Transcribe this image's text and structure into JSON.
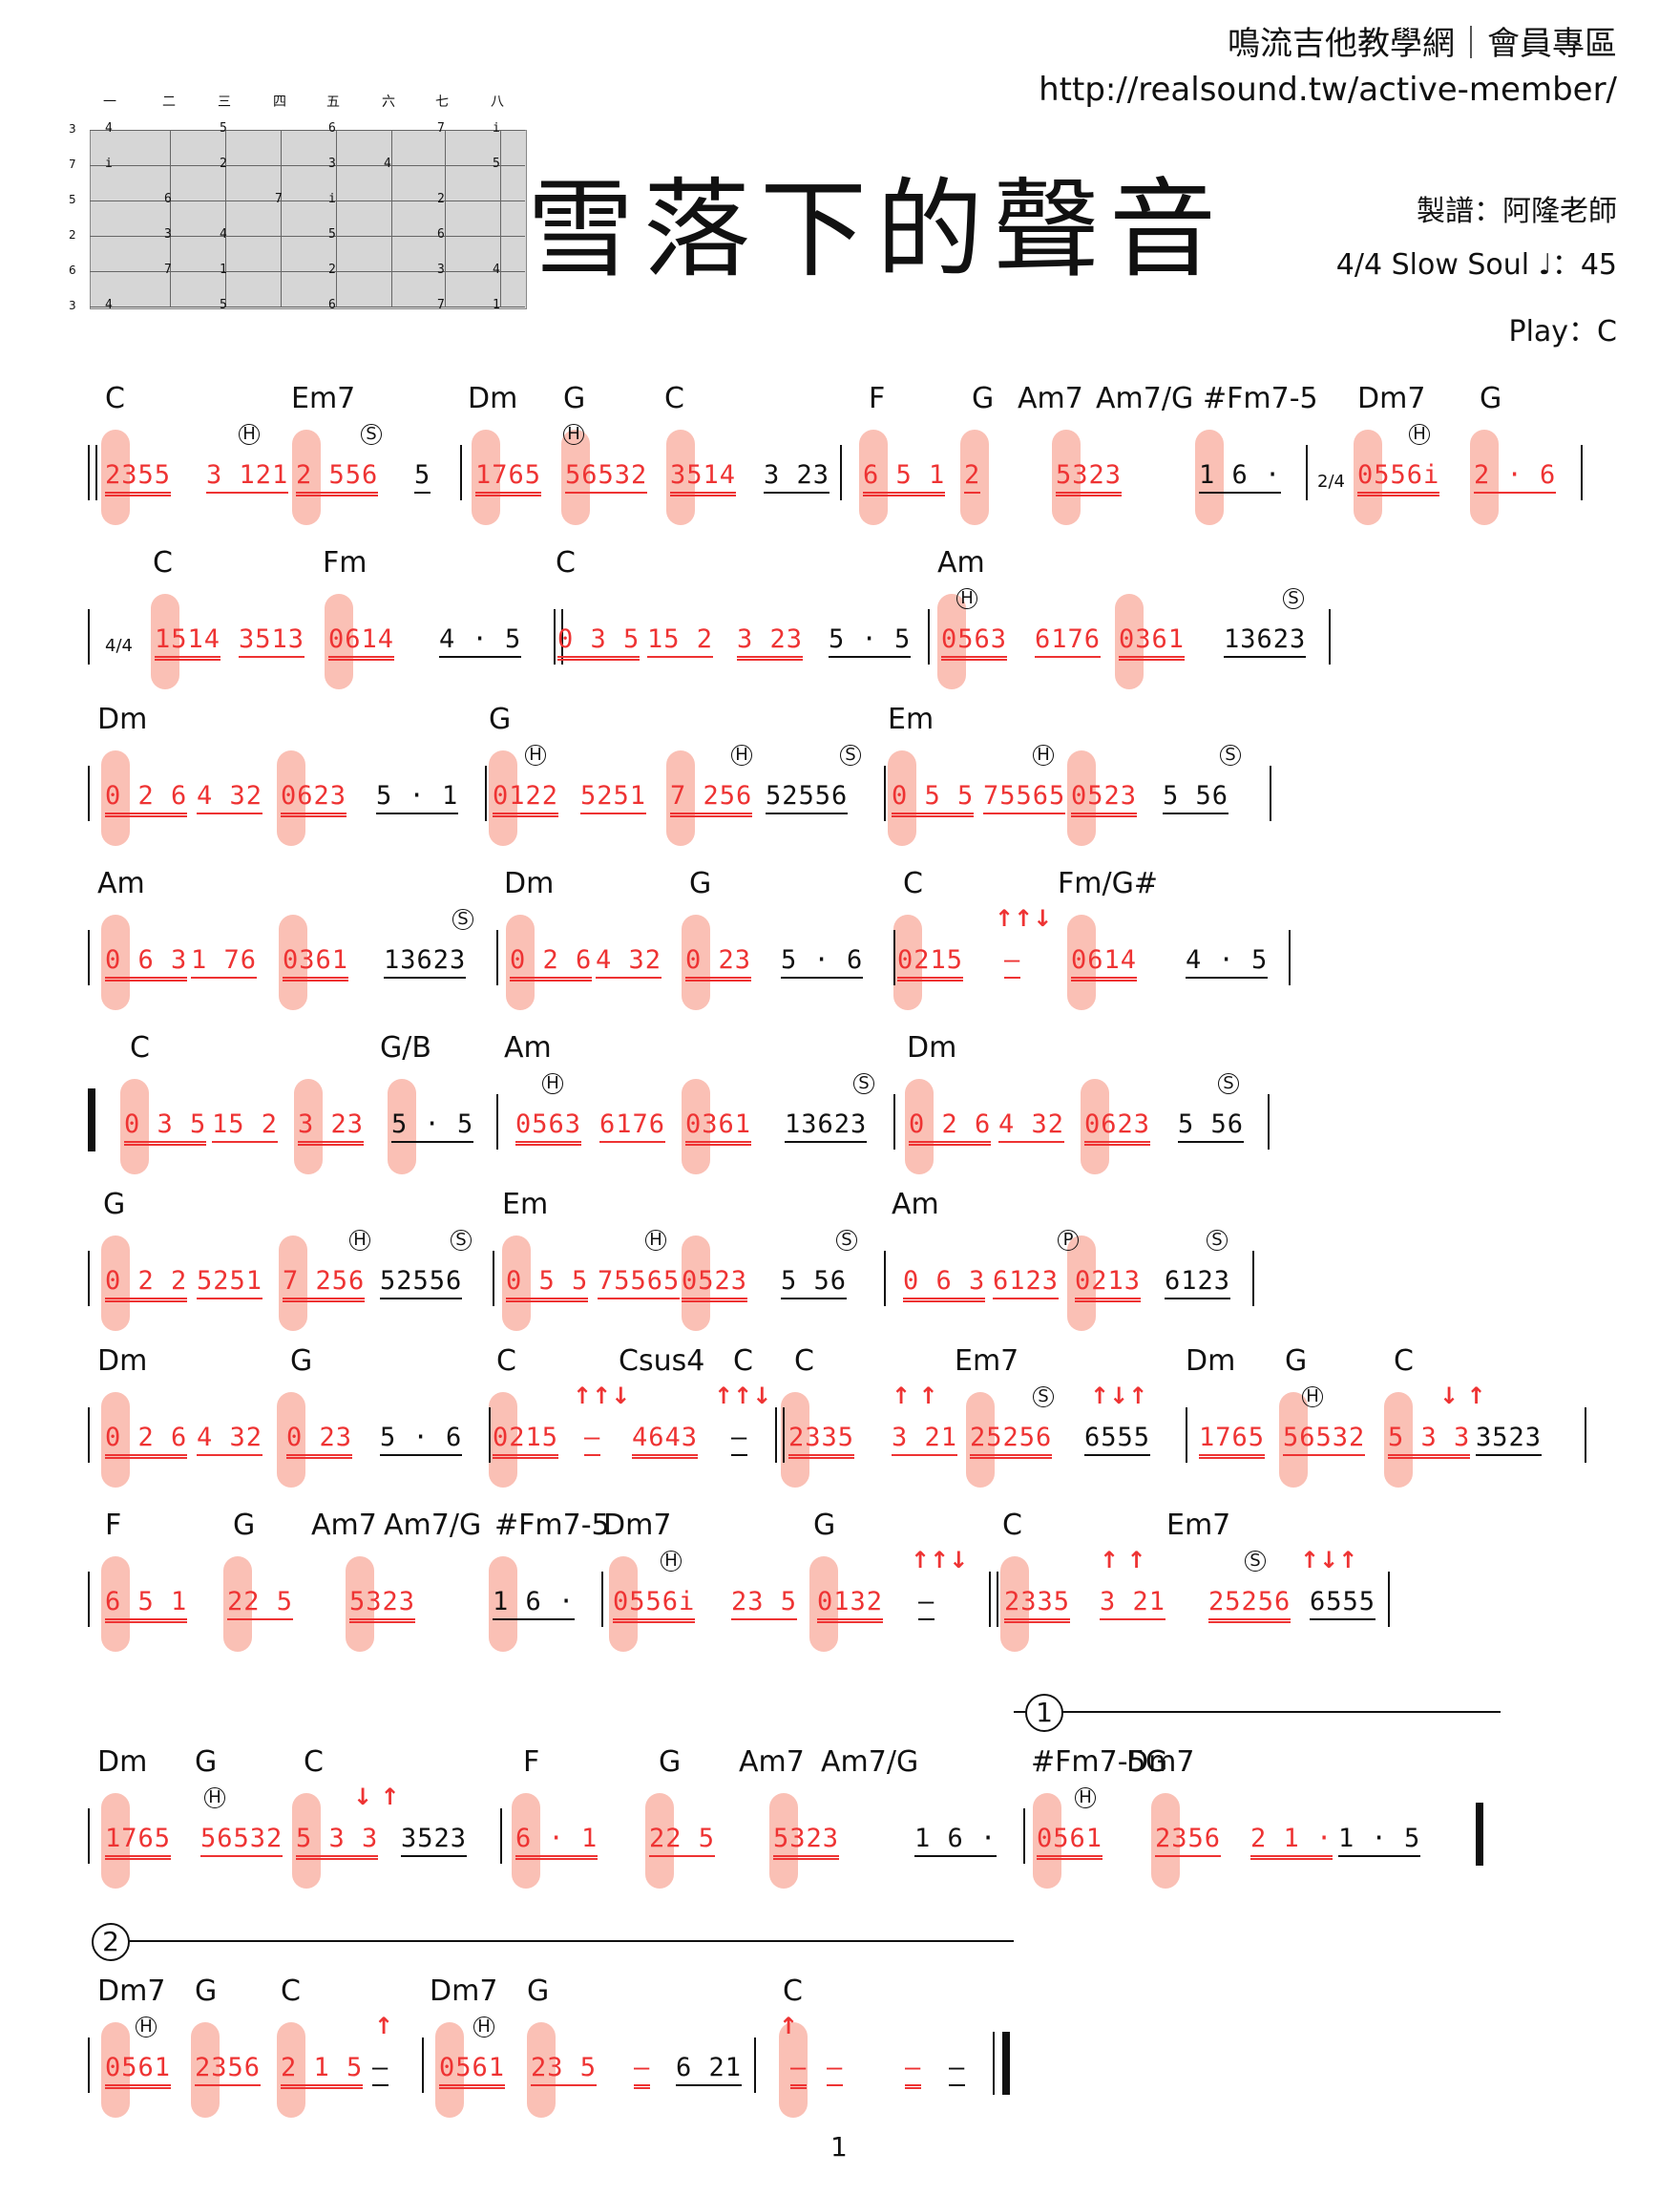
{
  "header": {
    "site": "鳴流吉他教學網｜會員專區",
    "url": "http://realsound.tw/active-member/",
    "title": "雪落下的聲音",
    "arranger": "製譜：阿隆老師",
    "tempo": "4/4   Slow Soul   ♩：45",
    "play": "Play：C"
  },
  "fretboard": {
    "columns": [
      "一",
      "二",
      "三",
      "四",
      "五",
      "六",
      "七",
      "八"
    ],
    "strings": [
      "3",
      "7",
      "5",
      "2",
      "6",
      "3"
    ],
    "notes": [
      [
        "4",
        "",
        "5",
        "",
        "6",
        "",
        "7",
        "i"
      ],
      [
        "i",
        "",
        "2",
        "",
        "3",
        "4",
        "",
        "5"
      ],
      [
        "",
        "6",
        "",
        "7",
        "i",
        "",
        "2",
        ""
      ],
      [
        "",
        "3",
        "4",
        "",
        "5",
        "",
        "6",
        ""
      ],
      [
        "",
        "7",
        "1",
        "",
        "2",
        "",
        "3",
        "4"
      ],
      [
        "4",
        "",
        "5",
        "",
        "6",
        "",
        "7",
        "1"
      ]
    ]
  },
  "systems": [
    {
      "chords": [
        "C",
        "Em7",
        "Dm",
        "G",
        "C",
        "F",
        "G",
        "Am7",
        "Am7/G",
        "#Fm7-5",
        "Dm7",
        "G"
      ],
      "notes": [
        "2355",
        "3 121",
        "2 556",
        "5",
        "1765",
        "56532",
        "3514",
        "3 23",
        "6 5 1",
        "2",
        "5323",
        "1 6 ·",
        "0556i",
        "2 · 6"
      ],
      "timesig": "2/4"
    },
    {
      "chords": [
        "C",
        "Fm",
        "C",
        "Am"
      ],
      "notes": [
        "1514",
        "3513",
        "0614",
        "4 · 5",
        "0 3 5",
        "15 2",
        "3 23",
        "5 · 5",
        "0563",
        "6176",
        "0361",
        "13623"
      ],
      "timesig": "4/4"
    },
    {
      "chords": [
        "Dm",
        "G",
        "Em"
      ],
      "notes": [
        "0 2 6",
        "4 32",
        "0623",
        "5 · 1",
        "0122",
        "5251",
        "7 256",
        "52556",
        "0 5 5",
        "75565",
        "0523",
        "5 56"
      ]
    },
    {
      "chords": [
        "Am",
        "Dm",
        "G",
        "C",
        "Fm/G#"
      ],
      "notes": [
        "0 6 3",
        "1 76",
        "0361",
        "13623",
        "0 2 6",
        "4 32",
        "0 23",
        "5 · 6",
        "0215",
        "—",
        "0614",
        "4 · 5"
      ]
    },
    {
      "chords": [
        "C",
        "G/B",
        "Am",
        "Dm"
      ],
      "notes": [
        "0 3 5",
        "15 2",
        "3 23",
        "5 · 5",
        "0563",
        "6176",
        "0361",
        "13623",
        "0 2 6",
        "4 32",
        "0623",
        "5 56"
      ]
    },
    {
      "chords": [
        "G",
        "Em",
        "Am"
      ],
      "notes": [
        "0 2 2",
        "5251",
        "7 256",
        "52556",
        "0 5 5",
        "75565",
        "0523",
        "5 56",
        "0 6 3",
        "6123",
        "0213",
        "6123"
      ]
    },
    {
      "chords": [
        "Dm",
        "G",
        "C",
        "Csus4",
        "C",
        "C",
        "Em7",
        "Dm",
        "G",
        "C"
      ],
      "notes": [
        "0 2 6",
        "4 32",
        "0 23",
        "5 · 6",
        "0215",
        "—",
        "4643",
        "—",
        "2335",
        "3 21",
        "25256",
        "6555",
        "1765",
        "56532",
        "5 3 3",
        "3523"
      ]
    },
    {
      "chords": [
        "F",
        "G",
        "Am7",
        "Am7/G",
        "#Fm7-5",
        "Dm7",
        "G",
        "C",
        "Em7"
      ],
      "notes": [
        "6 5 1",
        "22 5",
        "5323",
        "1 6 ·",
        "0556i",
        "23 5",
        "0132",
        "—",
        "2335",
        "3 21",
        "25256",
        "6555"
      ]
    },
    {
      "chords": [
        "Dm",
        "G",
        "C",
        "F",
        "G",
        "Am7",
        "Am7/G",
        "#Fm7-5",
        "Dm7",
        "G"
      ],
      "notes": [
        "1765",
        "56532",
        "5 3 3",
        "3523",
        "6 · 1",
        "22 5",
        "5323",
        "1 6 ·",
        "0561",
        "2356",
        "2 1 ·",
        "1 · 5"
      ],
      "ending": "1"
    },
    {
      "chords": [
        "Dm7",
        "G",
        "C",
        "Dm7",
        "G",
        "C"
      ],
      "notes": [
        "0561",
        "2356",
        "2 1 5",
        "—",
        "0561",
        "23 5",
        "—",
        "6 21",
        "—",
        "—",
        "—",
        "—"
      ],
      "ending": "2"
    }
  ],
  "page_number": "1"
}
